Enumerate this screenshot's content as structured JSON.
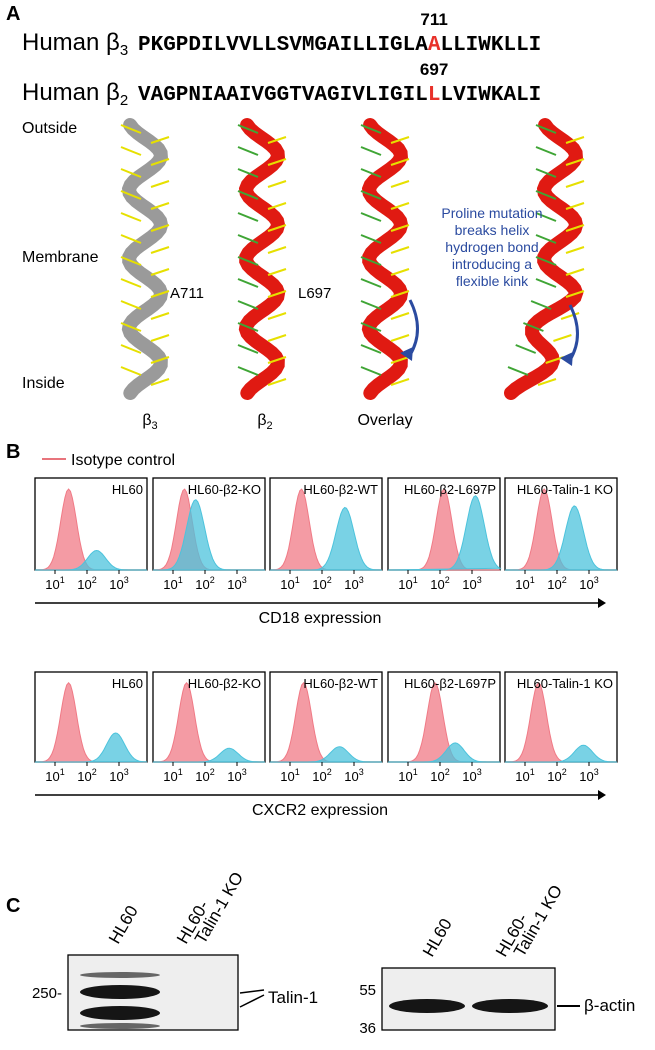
{
  "panel_a": {
    "label": "A",
    "sequences": [
      {
        "prefix": "Human β",
        "subscript": "3",
        "before": "PKGPDILVVLLSVMGAILLIGLA",
        "mutated": "A",
        "after": "LLIWKLLI",
        "position": "711"
      },
      {
        "prefix": "Human β",
        "subscript": "2",
        "before": "VAGPNIAAIVGGTVAGIVLIGIL",
        "mutated": "L",
        "after": "LVIWKALI",
        "position": "697"
      }
    ],
    "regions": [
      "Outside",
      "Membrane",
      "Inside"
    ],
    "residue_labels": [
      "A711",
      "L697"
    ],
    "annotation": [
      "Proline mutation",
      "breaks helix",
      "hydrogen bond",
      "introducing a",
      "flexible kink"
    ],
    "captions": [
      {
        "symbol": "β",
        "subscript": "3"
      },
      {
        "symbol": "β",
        "subscript": "2"
      },
      {
        "symbol": "Overlay",
        "subscript": ""
      }
    ]
  },
  "panel_b": {
    "label": "B",
    "legend": "Isotype control",
    "tick_base": "10",
    "tick_exponents": [
      "1",
      "2",
      "3"
    ],
    "rows": [
      {
        "panels": [
          "HL60",
          "HL60-β2-KO",
          "HL60-β2-WT",
          "HL60-β2-L697P",
          "HL60-Talin-1 KO"
        ],
        "axis_label": "CD18 expression"
      },
      {
        "panels": [
          "HL60",
          "HL60-β2-KO",
          "HL60-β2-WT",
          "HL60-β2-L697P",
          "HL60-Talin-1 KO"
        ],
        "axis_label": "CXCR2 expression"
      }
    ]
  },
  "panel_c": {
    "label": "C",
    "blots": [
      {
        "lanes": [
          [
            "HL60"
          ],
          [
            "HL60-",
            "Talin-1 KO"
          ]
        ],
        "markers": [
          "250-"
        ],
        "band_label": "Talin-1"
      },
      {
        "lanes": [
          [
            "HL60"
          ],
          [
            "HL60-",
            "Talin-1 KO"
          ]
        ],
        "markers": [
          "55",
          "36"
        ],
        "band_label": "β-actin"
      }
    ]
  }
}
